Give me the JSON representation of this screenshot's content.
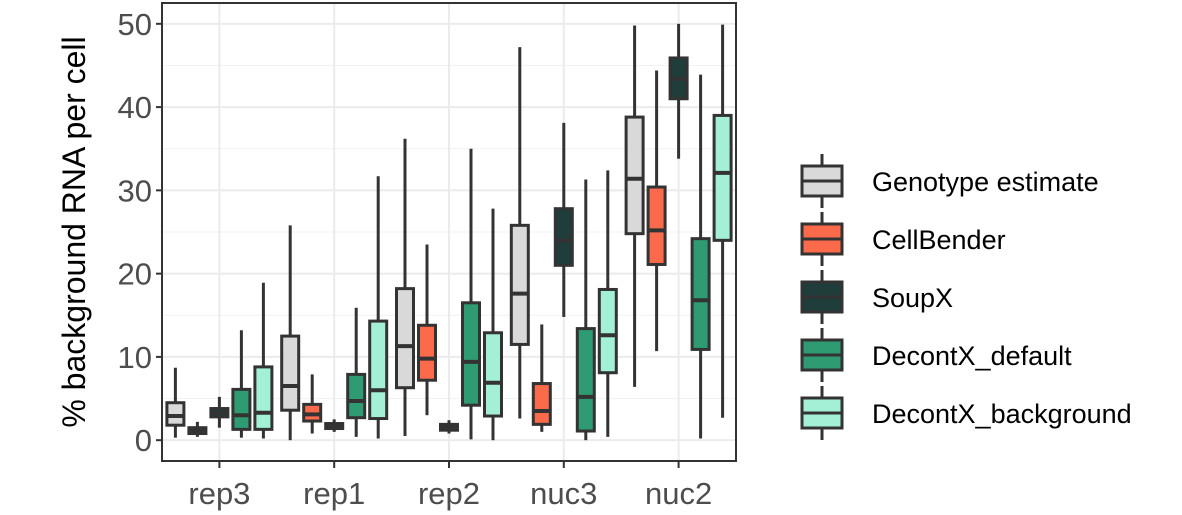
{
  "chart_data": {
    "type": "box",
    "ylabel": "% background RNA per cell",
    "xlabel": "",
    "ylim": [
      -2.5,
      52.5
    ],
    "yticks": [
      0,
      10,
      20,
      30,
      40,
      50
    ],
    "grid": true,
    "legend_position": "right",
    "categories": [
      "rep3",
      "rep1",
      "rep2",
      "nuc3",
      "nuc2"
    ],
    "series": [
      {
        "name": "Genotype estimate",
        "color": "#d9d9d9",
        "boxes": [
          {
            "min": 0.3,
            "q1": 1.8,
            "median": 2.9,
            "q3": 4.5,
            "max": 8.7
          },
          {
            "min": 0.0,
            "q1": 3.6,
            "median": 6.5,
            "q3": 12.5,
            "max": 25.8
          },
          {
            "min": 0.5,
            "q1": 6.3,
            "median": 11.3,
            "q3": 18.2,
            "max": 36.2
          },
          {
            "min": 2.6,
            "q1": 11.5,
            "median": 17.6,
            "q3": 25.8,
            "max": 47.2
          },
          {
            "min": 6.4,
            "q1": 24.8,
            "median": 31.4,
            "q3": 38.8,
            "max": 49.8
          }
        ]
      },
      {
        "name": "CellBender",
        "color": "#fb6a4a",
        "boxes": [
          {
            "min": 0.4,
            "q1": 0.8,
            "median": 1.1,
            "q3": 1.5,
            "max": 2.2
          },
          {
            "min": 0.8,
            "q1": 2.3,
            "median": 3.1,
            "q3": 4.3,
            "max": 7.9
          },
          {
            "min": 3.0,
            "q1": 7.2,
            "median": 9.8,
            "q3": 13.8,
            "max": 23.5
          },
          {
            "min": 1.0,
            "q1": 1.9,
            "median": 3.5,
            "q3": 6.8,
            "max": 13.9
          },
          {
            "min": 10.7,
            "q1": 21.1,
            "median": 25.2,
            "q3": 30.4,
            "max": 44.4
          }
        ]
      },
      {
        "name": "SoupX",
        "color": "#1f3d3a",
        "boxes": [
          {
            "min": 1.5,
            "q1": 2.8,
            "median": 3.3,
            "q3": 3.8,
            "max": 5.2
          },
          {
            "min": 1.0,
            "q1": 1.4,
            "median": 1.8,
            "q3": 2.0,
            "max": 2.5
          },
          {
            "min": 0.8,
            "q1": 1.2,
            "median": 1.5,
            "q3": 1.9,
            "max": 2.4
          },
          {
            "min": 14.8,
            "q1": 21.0,
            "median": 24.0,
            "q3": 27.8,
            "max": 38.1
          },
          {
            "min": 33.8,
            "q1": 41.0,
            "median": 43.4,
            "q3": 45.9,
            "max": 50.0
          }
        ]
      },
      {
        "name": "DecontX_default",
        "color": "#2e9b73",
        "boxes": [
          {
            "min": 0.3,
            "q1": 1.3,
            "median": 3.0,
            "q3": 6.1,
            "max": 13.2
          },
          {
            "min": 0.4,
            "q1": 2.7,
            "median": 4.7,
            "q3": 7.9,
            "max": 15.9
          },
          {
            "min": 0.1,
            "q1": 4.2,
            "median": 9.4,
            "q3": 16.5,
            "max": 35.0
          },
          {
            "min": 0.0,
            "q1": 1.1,
            "median": 5.2,
            "q3": 13.4,
            "max": 31.3
          },
          {
            "min": 0.2,
            "q1": 10.9,
            "median": 16.8,
            "q3": 24.2,
            "max": 43.9
          }
        ]
      },
      {
        "name": "DecontX_background",
        "color": "#a3f0d6",
        "boxes": [
          {
            "min": 0.2,
            "q1": 1.3,
            "median": 3.3,
            "q3": 8.8,
            "max": 18.9
          },
          {
            "min": 0.2,
            "q1": 2.6,
            "median": 6.0,
            "q3": 14.3,
            "max": 31.7
          },
          {
            "min": 0.0,
            "q1": 2.9,
            "median": 6.9,
            "q3": 12.9,
            "max": 27.8
          },
          {
            "min": 0.4,
            "q1": 8.1,
            "median": 12.6,
            "q3": 18.1,
            "max": 32.4
          },
          {
            "min": 2.7,
            "q1": 24.0,
            "median": 32.1,
            "q3": 39.0,
            "max": 49.9
          }
        ]
      }
    ]
  }
}
